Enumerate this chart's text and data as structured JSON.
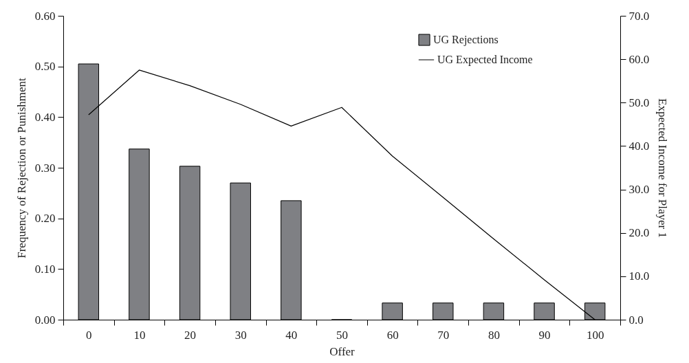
{
  "chart_data": {
    "type": "bar",
    "xlabel": "Offer",
    "ylabel": "Frequency of Rejection or Punishment",
    "y2label": "Expected Income for Player 1",
    "categories": [
      "0",
      "10",
      "20",
      "30",
      "40",
      "50",
      "60",
      "70",
      "80",
      "90",
      "100"
    ],
    "series": [
      {
        "name": "UG Rejections",
        "color": "#7f8084",
        "values": [
          0.505,
          0.337,
          0.303,
          0.27,
          0.235,
          0,
          0.033,
          0.033,
          0.033,
          0.033,
          0.033
        ]
      },
      {
        "name": "UG Expected Income",
        "type": "line",
        "axis": "y2",
        "color": "#000000",
        "values": [
          47.2,
          57.5,
          53.9,
          49.6,
          44.6,
          48.9,
          37.7,
          28.2,
          18.6,
          9.2,
          0
        ]
      }
    ],
    "ylim": [
      0,
      0.6
    ],
    "yticks": [
      {
        "value": 0,
        "label": "0.00"
      },
      {
        "value": 0.1,
        "label": "0.10"
      },
      {
        "value": 0.2,
        "label": "0.20"
      },
      {
        "value": 0.3,
        "label": "0.30"
      },
      {
        "value": 0.4,
        "label": "0.40"
      },
      {
        "value": 0.5,
        "label": "0.50"
      },
      {
        "value": 0.6,
        "label": "0.60"
      }
    ],
    "y2lim": [
      0,
      70
    ],
    "y2ticks": [
      {
        "value": 0,
        "label": "0.0"
      },
      {
        "value": 10,
        "label": "10.0"
      },
      {
        "value": 20,
        "label": "20.0"
      },
      {
        "value": 30,
        "label": "30.0"
      },
      {
        "value": 40,
        "label": "40.0"
      },
      {
        "value": 50,
        "label": "50.0"
      },
      {
        "value": 60,
        "label": "60.0"
      },
      {
        "value": 70,
        "label": "70.0"
      }
    ],
    "grid": false,
    "legend": "top right",
    "marker": "none",
    "line_style": "solid"
  }
}
